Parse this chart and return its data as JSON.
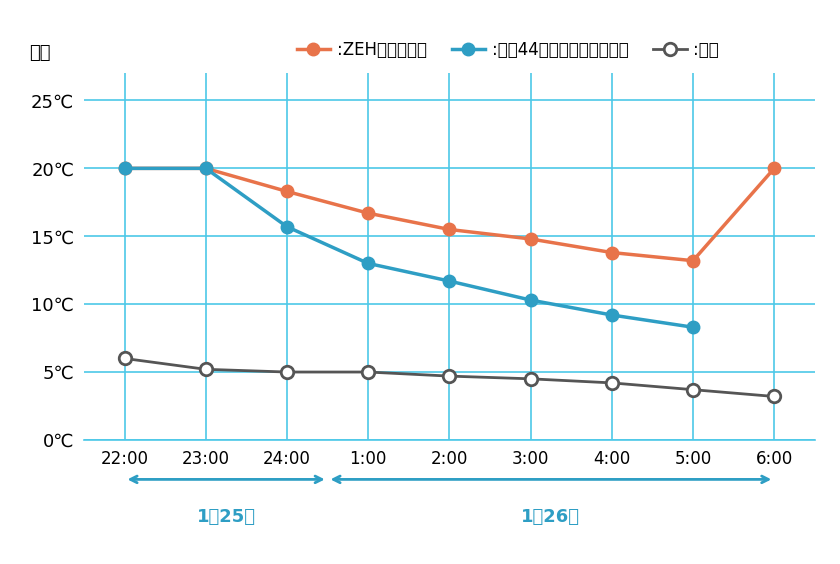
{
  "x_labels": [
    "22:00",
    "23:00",
    "24:00",
    "1:00",
    "2:00",
    "3:00",
    "4:00",
    "5:00",
    "6:00"
  ],
  "x_indices": [
    0,
    1,
    2,
    3,
    4,
    5,
    6,
    7,
    8
  ],
  "zeh_values": [
    20.0,
    20.0,
    18.3,
    16.7,
    15.5,
    14.8,
    13.8,
    13.2,
    20.0
  ],
  "heisei_values": [
    20.0,
    20.0,
    15.7,
    13.0,
    11.7,
    10.3,
    9.2,
    8.3,
    null
  ],
  "gaiki_values": [
    6.0,
    5.2,
    5.0,
    5.0,
    4.7,
    4.5,
    4.2,
    3.7,
    3.2
  ],
  "zeh_color": "#E8734A",
  "heisei_color": "#2E9EC4",
  "gaiki_color": "#555555",
  "grid_color": "#4DC8E8",
  "background_color": "#FFFFFF",
  "y_ticks": [
    0,
    5,
    10,
    15,
    20,
    25
  ],
  "y_tick_labels": [
    "0℃",
    "5℃",
    "10℃",
    "15℃",
    "20℃",
    "25℃"
  ],
  "ylim": [
    0,
    27
  ],
  "ylabel": "室温",
  "legend_zeh": ":\u0005ZEH相当レベル",
  "legend_gaiki": ":外気",
  "jan25_label": "1月25日",
  "jan26_label": "1月26日",
  "arrow_color": "#2E9EC4",
  "date_label_color": "#2E9EC4",
  "date_label_fontsize": 13,
  "legend_zeh_text": ":ZEH相当レベル",
  "legend_heisei_text": ":平成44年省エネ基準レベル",
  "legend_gaiki_text": ":外気"
}
